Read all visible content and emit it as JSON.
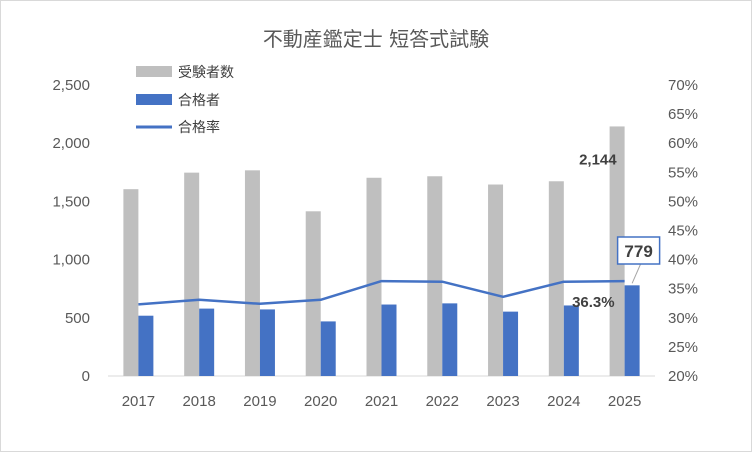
{
  "chart_data": {
    "type": "bar",
    "title": "不動産鑑定士 短答式試験",
    "categories": [
      "2017",
      "2018",
      "2019",
      "2020",
      "2021",
      "2022",
      "2023",
      "2024",
      "2025"
    ],
    "series": [
      {
        "name": "受験者数",
        "type": "bar",
        "axis": "left",
        "color": "#bfbfbf",
        "values": [
          1605,
          1747,
          1767,
          1415,
          1703,
          1716,
          1645,
          1673,
          2144
        ]
      },
      {
        "name": "合格者",
        "type": "bar",
        "axis": "left",
        "color": "#4472c4",
        "values": [
          518,
          579,
          572,
          469,
          614,
          624,
          553,
          606,
          779
        ]
      },
      {
        "name": "合格率",
        "type": "line",
        "axis": "right",
        "color": "#4472c4",
        "values": [
          32.3,
          33.1,
          32.4,
          33.1,
          36.3,
          36.2,
          33.6,
          36.2,
          36.3
        ]
      }
    ],
    "y_left": {
      "min": 0,
      "max": 2500,
      "step": 500,
      "tick_labels": [
        "0",
        "500",
        "1,000",
        "1,500",
        "2,000",
        "2,500"
      ]
    },
    "y_right": {
      "min": 20,
      "max": 70,
      "step": 5,
      "tick_labels": [
        "20%",
        "25%",
        "30%",
        "35%",
        "40%",
        "45%",
        "50%",
        "55%",
        "60%",
        "65%",
        "70%"
      ]
    },
    "annotations": {
      "examinees_2025": "2,144",
      "passers_2025": "779",
      "rate_2025": "36.3%"
    },
    "legend": {
      "position": "top-left"
    },
    "grid": false
  }
}
